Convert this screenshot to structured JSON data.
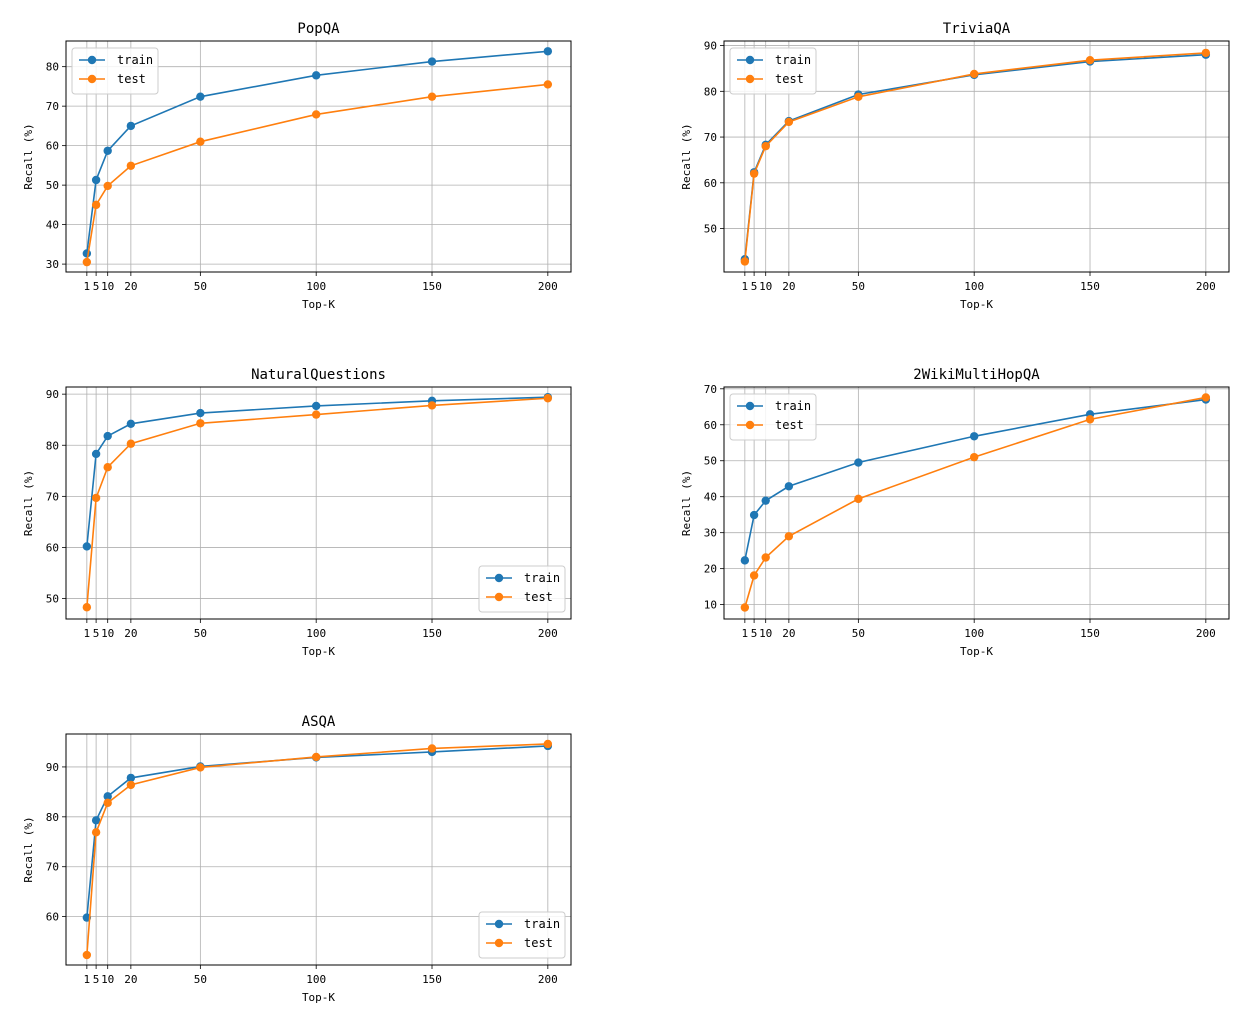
{
  "colors": {
    "train": "#1f77b4",
    "test": "#ff7f0e",
    "grid": "#b0b0b0",
    "axes": "#000000"
  },
  "chart_data": [
    {
      "type": "line",
      "title": "PopQA",
      "xlabel": "Top-K",
      "ylabel": "Recall (%)",
      "x": [
        1,
        5,
        10,
        20,
        50,
        100,
        150,
        200
      ],
      "xticks": [
        "1",
        "5",
        "10",
        "20",
        "50",
        "100",
        "150",
        "200"
      ],
      "xlim": [
        -8,
        210
      ],
      "ylim": [
        28,
        86.5
      ],
      "yticks": [
        30,
        40,
        50,
        60,
        70,
        80
      ],
      "legend": "upper-left",
      "series": [
        {
          "name": "train",
          "values": [
            32.7,
            51.3,
            58.7,
            65.0,
            72.4,
            77.8,
            81.3,
            83.9
          ]
        },
        {
          "name": "test",
          "values": [
            30.5,
            45.0,
            49.8,
            54.9,
            61.0,
            67.9,
            72.4,
            75.5
          ]
        }
      ]
    },
    {
      "type": "line",
      "title": "TriviaQA",
      "xlabel": "Top-K",
      "ylabel": "Recall (%)",
      "x": [
        1,
        5,
        10,
        20,
        50,
        100,
        150,
        200
      ],
      "xticks": [
        "1",
        "5",
        "10",
        "20",
        "50",
        "100",
        "150",
        "200"
      ],
      "xlim": [
        -8,
        210
      ],
      "ylim": [
        40.5,
        91
      ],
      "yticks": [
        50,
        60,
        70,
        80,
        90
      ],
      "legend": "upper-left",
      "series": [
        {
          "name": "train",
          "values": [
            43.3,
            62.3,
            68.3,
            73.5,
            79.3,
            83.6,
            86.5,
            88.0
          ]
        },
        {
          "name": "test",
          "values": [
            42.8,
            62.0,
            68.0,
            73.3,
            78.8,
            83.8,
            86.8,
            88.4
          ]
        }
      ]
    },
    {
      "type": "line",
      "title": "NaturalQuestions",
      "xlabel": "Top-K",
      "ylabel": "Recall (%)",
      "x": [
        1,
        5,
        10,
        20,
        50,
        100,
        150,
        200
      ],
      "xticks": [
        "1",
        "5",
        "10",
        "20",
        "50",
        "100",
        "150",
        "200"
      ],
      "xlim": [
        -8,
        210
      ],
      "ylim": [
        46,
        91.4
      ],
      "yticks": [
        50,
        60,
        70,
        80,
        90
      ],
      "legend": "lower-right",
      "series": [
        {
          "name": "train",
          "values": [
            60.2,
            78.3,
            81.8,
            84.2,
            86.3,
            87.7,
            88.7,
            89.4
          ]
        },
        {
          "name": "test",
          "values": [
            48.3,
            69.7,
            75.7,
            80.3,
            84.3,
            86.0,
            87.8,
            89.2
          ]
        }
      ]
    },
    {
      "type": "line",
      "title": "2WikiMultiHopQA",
      "xlabel": "Top-K",
      "ylabel": "Recall (%)",
      "x": [
        1,
        5,
        10,
        20,
        50,
        100,
        150,
        200
      ],
      "xticks": [
        "1",
        "5",
        "10",
        "20",
        "50",
        "100",
        "150",
        "200"
      ],
      "xlim": [
        -8,
        210
      ],
      "ylim": [
        6,
        70.5
      ],
      "yticks": [
        10,
        20,
        30,
        40,
        50,
        60,
        70
      ],
      "legend": "upper-left",
      "series": [
        {
          "name": "train",
          "values": [
            22.3,
            34.9,
            38.9,
            42.9,
            49.5,
            56.8,
            62.9,
            67.0
          ]
        },
        {
          "name": "test",
          "values": [
            9.2,
            18.1,
            23.1,
            29.0,
            39.4,
            51.0,
            61.5,
            67.6
          ]
        }
      ]
    },
    {
      "type": "line",
      "title": "ASQA",
      "xlabel": "Top-K",
      "ylabel": "Recall (%)",
      "x": [
        1,
        5,
        10,
        20,
        50,
        100,
        150,
        200
      ],
      "xticks": [
        "1",
        "5",
        "10",
        "20",
        "50",
        "100",
        "150",
        "200"
      ],
      "xlim": [
        -8,
        210
      ],
      "ylim": [
        50.3,
        96.6
      ],
      "yticks": [
        60,
        70,
        80,
        90
      ],
      "legend": "lower-right",
      "series": [
        {
          "name": "train",
          "values": [
            59.8,
            79.3,
            84.1,
            87.8,
            90.1,
            91.9,
            93.0,
            94.2
          ]
        },
        {
          "name": "test",
          "values": [
            52.3,
            76.9,
            82.8,
            86.4,
            89.9,
            92.0,
            93.7,
            94.6
          ]
        }
      ]
    }
  ]
}
